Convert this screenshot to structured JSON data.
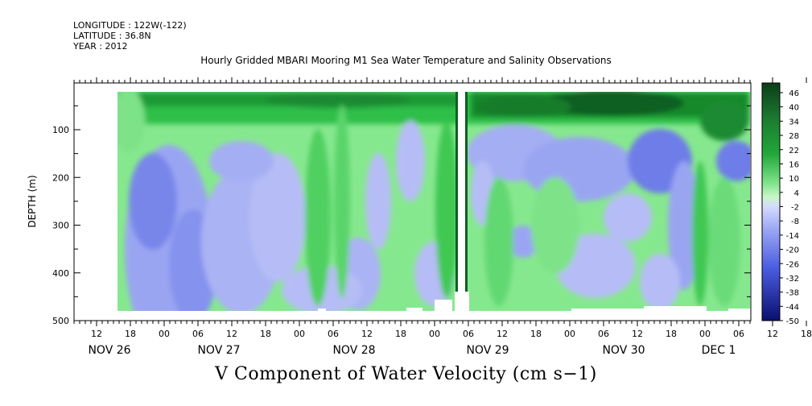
{
  "header": {
    "longitude": "LONGITUDE : 122W(-122)",
    "latitude": "LATITUDE : 36.8N",
    "year": "YEAR : 2012"
  },
  "chart_data": {
    "type": "heatmap",
    "title": "Hourly Gridded MBARI Mooring M1 Sea Water Temperature and Salinity Observations",
    "bottom_title": "V Component of Water Velocity (cm s−1)",
    "ylabel": "DEPTH (m)",
    "y_ticks": [
      "100",
      "200",
      "300",
      "400",
      "500"
    ],
    "y_tick_values": [
      100,
      200,
      300,
      400,
      500
    ],
    "ylim": [
      500,
      0
    ],
    "x_hour_ticks": [
      "12",
      "18",
      "00",
      "06",
      "12",
      "18",
      "00",
      "06",
      "12",
      "18",
      "00",
      "06",
      "12",
      "18",
      "00",
      "06",
      "12",
      "18",
      "00",
      "06",
      "12",
      "18",
      "00",
      "06"
    ],
    "x_day_labels": [
      "NOV 26",
      "NOV 27",
      "NOV 28",
      "NOV 29",
      "NOV 30",
      "DEC  1"
    ],
    "colorbar": {
      "labels": [
        "46",
        "40",
        "34",
        "28",
        "22",
        "16",
        "10",
        "4",
        "-2",
        "-8",
        "-14",
        "-20",
        "-26",
        "-32",
        "-38",
        "-44",
        "-50"
      ],
      "range": [
        -50,
        50
      ],
      "colors": {
        "dark_green": "#0b3d1a",
        "green": "#22a83a",
        "light_green": "#7fe28a",
        "pale_green": "#c9f7c6",
        "pale_blue": "#d4dbff",
        "light_blue": "#9aa5f2",
        "blue": "#4a5ce0",
        "dark_blue": "#0a0f6e"
      }
    },
    "field_description": [
      {
        "region": "upper layer 0-100m",
        "dominant": "positive (green, 10-40)"
      },
      {
        "region": "NOV 26 18h - NOV 27 12h, 150-480m",
        "dominant": "negative (blue, -8 to -26)"
      },
      {
        "region": "NOV 29 - NOV 30, 120-250m",
        "dominant": "negative (blue, -8 to -20)"
      },
      {
        "region": "around NOV 29 06h",
        "dominant": "data gap (white)"
      }
    ]
  }
}
